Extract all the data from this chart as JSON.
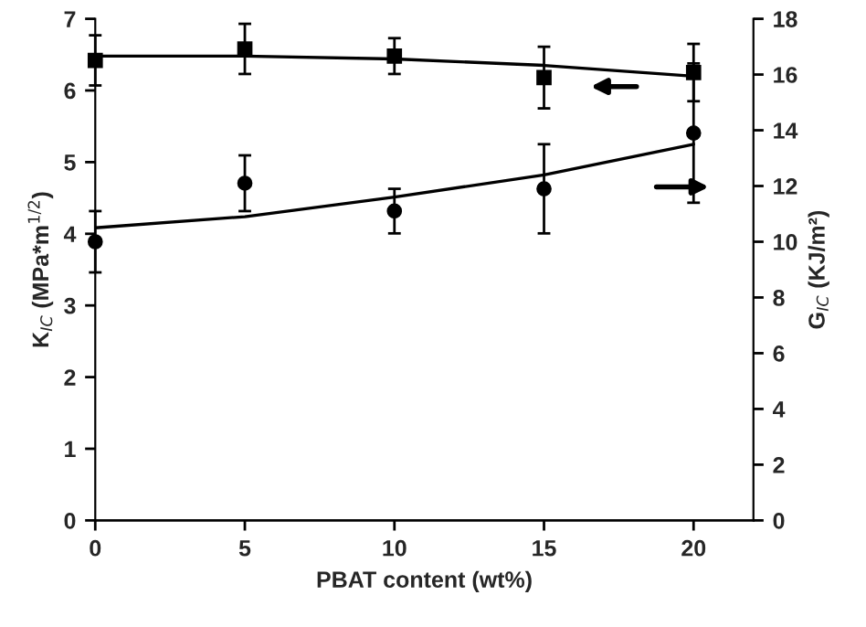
{
  "chart_data": {
    "type": "scatter",
    "xlabel": "PBAT content (wt%)",
    "ylabel": "K$_{IC}$ (MPa*m$^{1/2}$)",
    "y2label": "G$_{IC}$ (KJ/m²)",
    "x": [
      0,
      5,
      10,
      15,
      20
    ],
    "xlim": [
      0,
      22
    ],
    "xticks": [
      0,
      5,
      10,
      15,
      20
    ],
    "ylim": [
      0,
      7
    ],
    "yticks": [
      0,
      1,
      2,
      3,
      4,
      5,
      6,
      7
    ],
    "y2lim": [
      0,
      18
    ],
    "y2ticks": [
      0,
      2,
      4,
      6,
      8,
      10,
      12,
      14,
      16,
      18
    ],
    "grid": false,
    "legend": false,
    "series": [
      {
        "color": "#000000",
        "marker": "square",
        "values": [
          6.42,
          6.58,
          6.48,
          6.18,
          6.25
        ],
        "errors": [
          0.35,
          0.35,
          0.25,
          0.43,
          0.4
        ]
      },
      {
        "color": "#000000",
        "marker": "circle",
        "axis": "y2",
        "values": [
          10.0,
          12.1,
          11.1,
          11.9,
          13.9
        ],
        "errors": [
          1.1,
          1.0,
          0.8,
          1.6,
          2.5
        ]
      },
      {
        "type": "line",
        "color": "#000000",
        "marker": "none",
        "line_style": "solid",
        "x": [
          0,
          5,
          10,
          15,
          20
        ],
        "values": [
          6.48,
          6.48,
          6.44,
          6.35,
          6.2
        ]
      },
      {
        "type": "line",
        "color": "#000000",
        "marker": "none",
        "line_style": "solid",
        "axis": "y2",
        "x": [
          0,
          5,
          10,
          15,
          20
        ],
        "values": [
          10.5,
          10.9,
          11.6,
          12.4,
          13.5
        ]
      }
    ]
  }
}
